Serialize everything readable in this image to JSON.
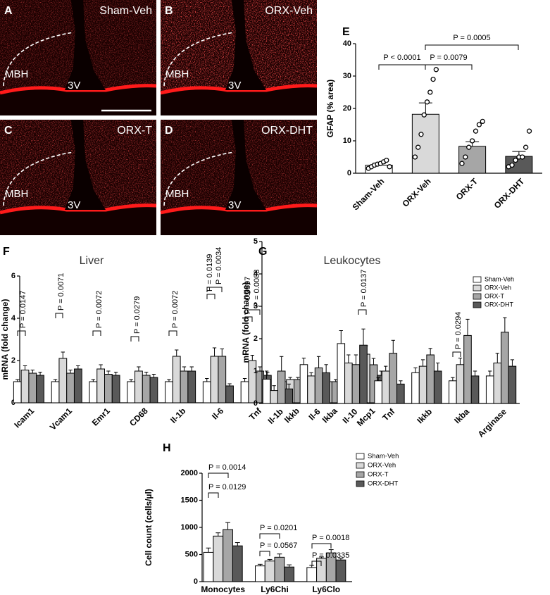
{
  "panels": [
    {
      "letter": "A",
      "label": "Sham-Veh",
      "region": "MBH",
      "ventricle": "3V"
    },
    {
      "letter": "B",
      "label": "ORX-Veh",
      "region": "MBH",
      "ventricle": "3V"
    },
    {
      "letter": "C",
      "label": "ORX-T",
      "region": "MBH",
      "ventricle": "3V"
    },
    {
      "letter": "D",
      "label": "ORX-DHT",
      "region": "MBH",
      "ventricle": "3V"
    }
  ],
  "chart_data": [
    {
      "type": "bar",
      "letter": "E",
      "ylabel": "GFAP (% area)",
      "categories": [
        "Sham-Veh",
        "ORX-Veh",
        "ORX-T",
        "ORX-DHT"
      ],
      "values": [
        2.5,
        18.2,
        8.3,
        5.2
      ],
      "errors": [
        0.5,
        3.5,
        1.4,
        1.5
      ],
      "colors": [
        "#ffffff",
        "#d9d9d9",
        "#a6a6a6",
        "#595959"
      ],
      "points": [
        [
          1.5,
          2,
          2.5,
          2.8,
          3,
          3.5,
          4,
          2
        ],
        [
          5,
          8,
          12,
          18,
          22,
          25,
          29,
          32
        ],
        [
          3,
          5,
          8,
          10,
          13,
          15,
          16
        ],
        [
          2,
          2.5,
          4,
          5,
          5,
          8,
          13
        ]
      ],
      "ylim": [
        0,
        40
      ],
      "yticks": [
        0,
        10,
        20,
        30,
        40
      ],
      "annotations": [
        "P < 0.0001",
        "P = 0.0079",
        "P = 0.0005"
      ]
    },
    {
      "type": "bar",
      "letter": "F",
      "title": "Liver",
      "ylabel": "mRNA (fold change)",
      "categories": [
        "Icam1",
        "Vcam1",
        "Emr1",
        "CD68",
        "Il-1b",
        "Il-6",
        "Tnf",
        "Ikkb",
        "Ikba",
        "Mcp1"
      ],
      "series": [
        {
          "color": "#ffffff",
          "values": [
            1.0,
            1.0,
            1.0,
            1.0,
            1.0,
            1.0,
            1.0,
            1.0,
            1.0,
            0.8
          ],
          "errors": [
            0.1,
            0.1,
            0.1,
            0.1,
            0.1,
            0.15,
            0.15,
            0.1,
            0.1,
            0.1
          ]
        },
        {
          "color": "#d9d9d9",
          "values": [
            1.55,
            2.1,
            1.6,
            1.5,
            2.2,
            2.2,
            2.0,
            1.1,
            1.0,
            2.3
          ],
          "errors": [
            0.2,
            0.3,
            0.2,
            0.2,
            0.3,
            0.4,
            0.25,
            0.1,
            0.1,
            0.4
          ]
        },
        {
          "color": "#a6a6a6",
          "values": [
            1.4,
            1.4,
            1.35,
            1.3,
            1.5,
            2.2,
            1.5,
            1.1,
            1.0,
            1.8
          ],
          "errors": [
            0.15,
            0.15,
            0.15,
            0.15,
            0.2,
            0.35,
            0.2,
            0.1,
            0.1,
            0.3
          ]
        },
        {
          "color": "#595959",
          "values": [
            1.3,
            1.6,
            1.3,
            1.2,
            1.5,
            0.8,
            1.3,
            1.0,
            1.0,
            1.3
          ],
          "errors": [
            0.15,
            0.15,
            0.15,
            0.15,
            0.2,
            0.1,
            0.15,
            0.1,
            0.1,
            0.2
          ]
        }
      ],
      "ylim": [
        0,
        6
      ],
      "yticks": [
        0,
        2,
        4,
        6
      ],
      "annotations": [
        "P = 0.0147",
        "P = 0.0071",
        "P = 0.0072",
        "P = 0.0279",
        "P = 0.0072",
        "P = 0.0139",
        "P = 0.0034",
        "P = 0.0397",
        "P = 0.0088",
        "P = 0.0137"
      ]
    },
    {
      "type": "bar",
      "letter": "G",
      "title": "Leukocytes",
      "ylabel": "mRNA (fold change)",
      "categories": [
        "Il-1b",
        "Il-6",
        "Il-10",
        "Tnf",
        "Ikkb",
        "Ikba",
        "Arginase"
      ],
      "series": [
        {
          "name": "Sham-Veh",
          "color": "#ffffff",
          "values": [
            0.75,
            1.2,
            1.85,
            0.7,
            0.95,
            0.7,
            0.85
          ],
          "errors": [
            0.25,
            0.2,
            0.4,
            0.1,
            0.15,
            0.1,
            0.15
          ]
        },
        {
          "name": "ORX-Veh",
          "color": "#d9d9d9",
          "values": [
            0.4,
            0.85,
            1.25,
            1.0,
            1.15,
            1.2,
            1.25
          ],
          "errors": [
            0.15,
            0.1,
            0.25,
            0.15,
            0.2,
            0.2,
            0.3
          ]
        },
        {
          "name": "ORX-T",
          "color": "#a6a6a6",
          "values": [
            1.0,
            1.1,
            1.2,
            1.55,
            1.5,
            2.1,
            2.2
          ],
          "errors": [
            0.45,
            0.35,
            0.3,
            0.4,
            0.2,
            0.5,
            0.45
          ]
        },
        {
          "name": "ORX-DHT",
          "color": "#595959",
          "values": [
            0.45,
            0.95,
            1.8,
            0.6,
            1.0,
            0.85,
            1.15
          ],
          "errors": [
            0.15,
            0.25,
            0.5,
            0.1,
            0.25,
            0.15,
            0.2
          ]
        }
      ],
      "ylim": [
        0,
        5
      ],
      "yticks": [
        0,
        1,
        2,
        3,
        4,
        5
      ],
      "legend": "upper right",
      "annotations": [
        "P = 0.0294"
      ]
    },
    {
      "type": "bar",
      "letter": "H",
      "ylabel": "Cell count (cells/µl)",
      "categories": [
        "Monocytes",
        "Ly6Chi",
        "Ly6Clo"
      ],
      "series": [
        {
          "name": "Sham-Veh",
          "color": "#ffffff",
          "values": [
            540,
            290,
            260
          ],
          "errors": [
            80,
            30,
            40
          ]
        },
        {
          "name": "ORX-Veh",
          "color": "#d9d9d9",
          "values": [
            840,
            380,
            430
          ],
          "errors": [
            60,
            30,
            25
          ]
        },
        {
          "name": "ORX-T",
          "color": "#a6a6a6",
          "values": [
            960,
            450,
            530
          ],
          "errors": [
            130,
            60,
            60
          ]
        },
        {
          "name": "ORX-DHT",
          "color": "#595959",
          "values": [
            660,
            270,
            400
          ],
          "errors": [
            60,
            40,
            30
          ]
        }
      ],
      "ylim": [
        0,
        2000
      ],
      "yticks": [
        0,
        500,
        1000,
        1500,
        2000
      ],
      "legend": "upper right",
      "annotations": [
        "P = 0.0014",
        "P = 0.0129",
        "P = 0.0201",
        "P = 0.0567",
        "P = 0.0018",
        "P = 0.0335"
      ]
    }
  ]
}
